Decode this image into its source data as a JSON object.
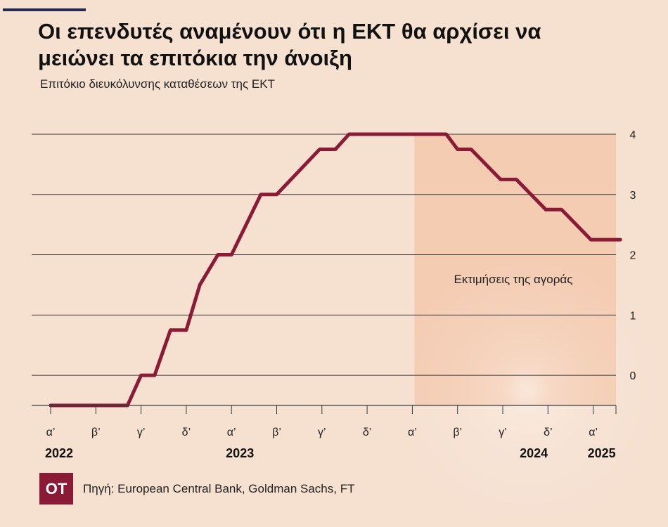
{
  "header": {
    "title": "Οι επενδυτές αναμένουν ότι η ΕΚΤ θα αρχίσει να μειώνει τα επιτόκια την άνοιξη",
    "subtitle": "Επιτόκιο διευκόλυνσης καταθέσεων της ΕΚΤ"
  },
  "footer": {
    "logo_text": "ΟΤ",
    "source": "Πηγή: European Central Bank, Goldman Sachs, FT"
  },
  "colors": {
    "background": "#f6e0d0",
    "line": "#8b1a37",
    "forecast_band": "#f3c8ad",
    "logo": "#8b1a37",
    "accent_bar": "#232a54"
  },
  "chart_data": {
    "type": "line",
    "title": "",
    "xlabel": "",
    "ylabel": "",
    "ylim": [
      -0.5,
      4
    ],
    "yticks": [
      0,
      1,
      2,
      3,
      4
    ],
    "grid": true,
    "quarters": [
      "α’",
      "β’",
      "γ’",
      "δ’",
      "α’",
      "β’",
      "γ’",
      "δ’",
      "α’",
      "β’",
      "γ’",
      "δ’",
      "α’"
    ],
    "years": [
      {
        "label": "2022",
        "quarter_index": 0
      },
      {
        "label": "2023",
        "quarter_index": 4
      },
      {
        "label": "2024",
        "quarter_index": 10.5
      },
      {
        "label": "2025",
        "quarter_index": 12
      }
    ],
    "forecast_annotation": "Εκτιμήσεις της αγοράς",
    "forecast_start_quarter": 8,
    "series": [
      {
        "points": [
          [
            0,
            -0.5
          ],
          [
            1.7,
            -0.5
          ],
          [
            2.0,
            0
          ],
          [
            2.3,
            0
          ],
          [
            2.65,
            0.75
          ],
          [
            3.0,
            0.75
          ],
          [
            3.3,
            1.5
          ],
          [
            3.7,
            2
          ],
          [
            4.0,
            2
          ],
          [
            4.65,
            3
          ],
          [
            5.0,
            3
          ],
          [
            5.95,
            3.75
          ],
          [
            6.3,
            3.75
          ],
          [
            6.6,
            4
          ],
          [
            8.0,
            4
          ],
          [
            8.75,
            4
          ],
          [
            9.0,
            3.75
          ],
          [
            9.3,
            3.75
          ],
          [
            9.95,
            3.25
          ],
          [
            10.3,
            3.25
          ],
          [
            10.95,
            2.75
          ],
          [
            11.3,
            2.75
          ],
          [
            11.95,
            2.25
          ],
          [
            12.6,
            2.25
          ]
        ]
      }
    ]
  }
}
